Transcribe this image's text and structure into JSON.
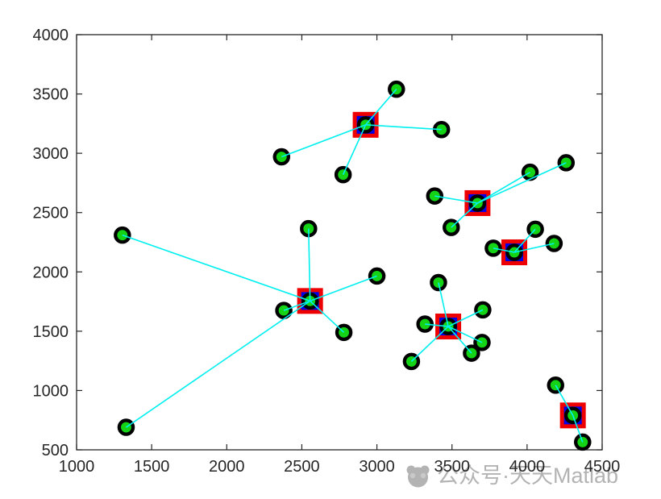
{
  "watermark": {
    "text": "公众号·天天Matlab",
    "logo_icon": "panda-icon",
    "color": "#b3b3b3"
  },
  "chart_data": {
    "type": "scatter",
    "title": "",
    "xlabel": "",
    "ylabel": "",
    "xlim": [
      1000,
      4500
    ],
    "ylim": [
      500,
      4000
    ],
    "xticks": [
      1000,
      1500,
      2000,
      2500,
      3000,
      3500,
      4000,
      4500
    ],
    "yticks": [
      500,
      1000,
      1500,
      2000,
      2500,
      3000,
      3500,
      4000
    ],
    "grid": false,
    "legend": null,
    "styles": {
      "axis_color": "#262626",
      "tick_font_px": 20,
      "node_fill": "#15d315",
      "node_edge": "#000000",
      "center_fill": "#0000e8",
      "center_edge": "#ee0000",
      "link_color": "#00efef"
    },
    "clusters": [
      {
        "center": [
          2925,
          3240
        ],
        "members": [
          [
            3130,
            3540
          ],
          [
            3430,
            3200
          ],
          [
            2365,
            2970
          ],
          [
            2775,
            2820
          ]
        ]
      },
      {
        "center": [
          3670,
          2580
        ],
        "members": [
          [
            3385,
            2640
          ],
          [
            4020,
            2840
          ],
          [
            4260,
            2920
          ],
          [
            3495,
            2375
          ]
        ]
      },
      {
        "center": [
          3915,
          2165
        ],
        "members": [
          [
            3775,
            2200
          ],
          [
            4055,
            2360
          ],
          [
            4180,
            2240
          ]
        ]
      },
      {
        "center": [
          2555,
          1755
        ],
        "members": [
          [
            2545,
            2365
          ],
          [
            1305,
            2310
          ],
          [
            2380,
            1675
          ],
          [
            3000,
            1965
          ],
          [
            2780,
            1490
          ],
          [
            1330,
            690
          ]
        ]
      },
      {
        "center": [
          3475,
          1540
        ],
        "members": [
          [
            3410,
            1910
          ],
          [
            3705,
            1680
          ],
          [
            3320,
            1560
          ],
          [
            3700,
            1405
          ],
          [
            3630,
            1315
          ],
          [
            3230,
            1245
          ]
        ]
      },
      {
        "center": [
          4305,
          790
        ],
        "members": [
          [
            4190,
            1045
          ],
          [
            4370,
            565
          ]
        ]
      }
    ]
  }
}
